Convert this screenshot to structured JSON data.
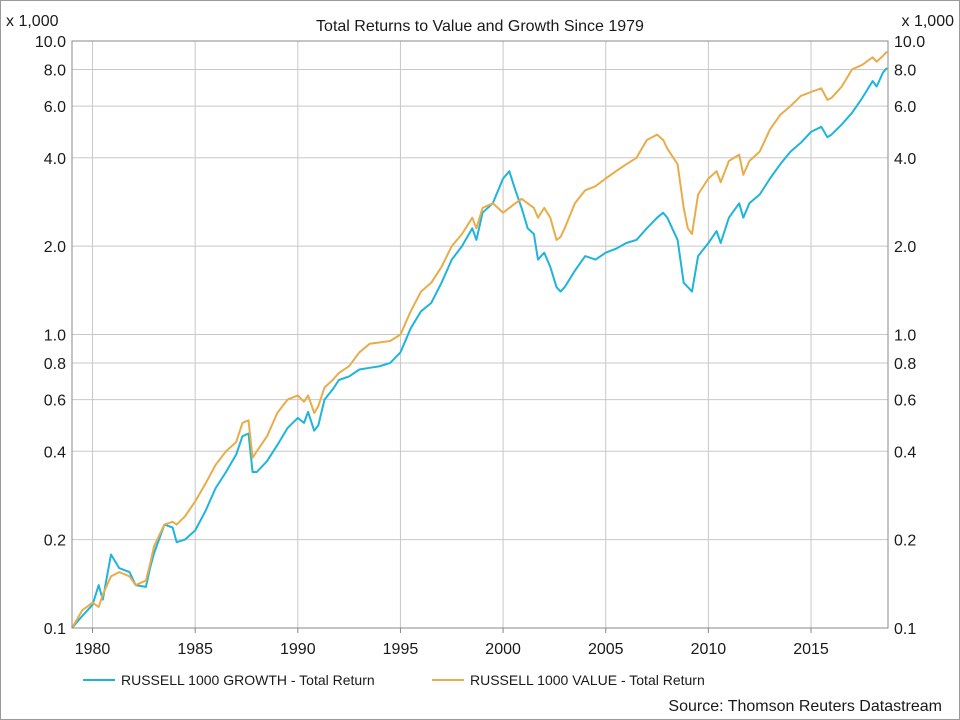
{
  "chart_data": {
    "type": "line",
    "title": "Total Returns to Value and Growth Since 1979",
    "y_unit_left": "x 1,000",
    "y_unit_right": "x 1,000",
    "y_scale": "log",
    "ylim": [
      0.1,
      10.0
    ],
    "xlim": [
      1979.0,
      2018.75
    ],
    "y_ticks": [
      {
        "value": 10.0,
        "label": "10.0"
      },
      {
        "value": 8.0,
        "label": "8.0"
      },
      {
        "value": 6.0,
        "label": "6.0"
      },
      {
        "value": 4.0,
        "label": "4.0"
      },
      {
        "value": 2.0,
        "label": "2.0"
      },
      {
        "value": 1.0,
        "label": "1.0"
      },
      {
        "value": 0.8,
        "label": "0.8"
      },
      {
        "value": 0.6,
        "label": "0.6"
      },
      {
        "value": 0.4,
        "label": "0.4"
      },
      {
        "value": 0.2,
        "label": "0.2"
      },
      {
        "value": 0.1,
        "label": "0.1"
      }
    ],
    "x_ticks": [
      {
        "value": 1980,
        "label": "1980"
      },
      {
        "value": 1985,
        "label": "1985"
      },
      {
        "value": 1990,
        "label": "1990"
      },
      {
        "value": 1995,
        "label": "1995"
      },
      {
        "value": 2000,
        "label": "2000"
      },
      {
        "value": 2005,
        "label": "2005"
      },
      {
        "value": 2010,
        "label": "2010"
      },
      {
        "value": 2015,
        "label": "2015"
      }
    ],
    "grid": true,
    "legend_position": "bottom",
    "source": "Source: Thomson Reuters Datastream",
    "series": [
      {
        "name": "RUSSELL 1000 GROWTH - Total Return",
        "color": "#1fb4dc",
        "points": [
          [
            1979.0,
            0.1
          ],
          [
            1979.5,
            0.11
          ],
          [
            1980.0,
            0.12
          ],
          [
            1980.3,
            0.14
          ],
          [
            1980.5,
            0.125
          ],
          [
            1980.9,
            0.178
          ],
          [
            1981.3,
            0.16
          ],
          [
            1981.8,
            0.155
          ],
          [
            1982.1,
            0.14
          ],
          [
            1982.6,
            0.138
          ],
          [
            1982.8,
            0.16
          ],
          [
            1983.0,
            0.18
          ],
          [
            1983.5,
            0.225
          ],
          [
            1983.9,
            0.22
          ],
          [
            1984.1,
            0.196
          ],
          [
            1984.5,
            0.2
          ],
          [
            1985.0,
            0.215
          ],
          [
            1985.5,
            0.25
          ],
          [
            1986.0,
            0.3
          ],
          [
            1986.5,
            0.34
          ],
          [
            1987.0,
            0.39
          ],
          [
            1987.3,
            0.45
          ],
          [
            1987.6,
            0.46
          ],
          [
            1987.8,
            0.34
          ],
          [
            1988.0,
            0.34
          ],
          [
            1988.5,
            0.37
          ],
          [
            1989.0,
            0.42
          ],
          [
            1989.5,
            0.48
          ],
          [
            1990.0,
            0.52
          ],
          [
            1990.3,
            0.5
          ],
          [
            1990.5,
            0.545
          ],
          [
            1990.8,
            0.47
          ],
          [
            1991.0,
            0.49
          ],
          [
            1991.3,
            0.6
          ],
          [
            1991.7,
            0.65
          ],
          [
            1992.0,
            0.7
          ],
          [
            1992.5,
            0.72
          ],
          [
            1993.0,
            0.76
          ],
          [
            1993.5,
            0.77
          ],
          [
            1994.0,
            0.78
          ],
          [
            1994.5,
            0.8
          ],
          [
            1995.0,
            0.87
          ],
          [
            1995.5,
            1.05
          ],
          [
            1996.0,
            1.2
          ],
          [
            1996.5,
            1.28
          ],
          [
            1997.0,
            1.5
          ],
          [
            1997.5,
            1.8
          ],
          [
            1998.0,
            2.0
          ],
          [
            1998.5,
            2.3
          ],
          [
            1998.7,
            2.1
          ],
          [
            1999.0,
            2.6
          ],
          [
            1999.5,
            2.8
          ],
          [
            2000.0,
            3.4
          ],
          [
            2000.3,
            3.6
          ],
          [
            2000.6,
            3.1
          ],
          [
            2000.9,
            2.7
          ],
          [
            2001.2,
            2.3
          ],
          [
            2001.5,
            2.2
          ],
          [
            2001.7,
            1.8
          ],
          [
            2002.0,
            1.9
          ],
          [
            2002.3,
            1.7
          ],
          [
            2002.6,
            1.45
          ],
          [
            2002.8,
            1.4
          ],
          [
            2003.0,
            1.45
          ],
          [
            2003.5,
            1.65
          ],
          [
            2004.0,
            1.85
          ],
          [
            2004.5,
            1.8
          ],
          [
            2005.0,
            1.9
          ],
          [
            2005.5,
            1.96
          ],
          [
            2006.0,
            2.05
          ],
          [
            2006.5,
            2.1
          ],
          [
            2007.0,
            2.3
          ],
          [
            2007.5,
            2.5
          ],
          [
            2007.8,
            2.6
          ],
          [
            2008.0,
            2.5
          ],
          [
            2008.5,
            2.1
          ],
          [
            2008.8,
            1.5
          ],
          [
            2009.0,
            1.45
          ],
          [
            2009.2,
            1.4
          ],
          [
            2009.5,
            1.85
          ],
          [
            2010.0,
            2.05
          ],
          [
            2010.4,
            2.25
          ],
          [
            2010.6,
            2.05
          ],
          [
            2011.0,
            2.5
          ],
          [
            2011.5,
            2.8
          ],
          [
            2011.7,
            2.5
          ],
          [
            2012.0,
            2.8
          ],
          [
            2012.5,
            3.0
          ],
          [
            2013.0,
            3.4
          ],
          [
            2013.5,
            3.8
          ],
          [
            2014.0,
            4.2
          ],
          [
            2014.5,
            4.5
          ],
          [
            2015.0,
            4.9
          ],
          [
            2015.5,
            5.1
          ],
          [
            2015.8,
            4.7
          ],
          [
            2016.0,
            4.8
          ],
          [
            2016.5,
            5.2
          ],
          [
            2017.0,
            5.7
          ],
          [
            2017.5,
            6.4
          ],
          [
            2018.0,
            7.3
          ],
          [
            2018.2,
            7.0
          ],
          [
            2018.5,
            7.8
          ],
          [
            2018.7,
            8.1
          ]
        ]
      },
      {
        "name": "RUSSELL 1000 VALUE - Total Return",
        "color": "#e8ad4a",
        "points": [
          [
            1979.0,
            0.1
          ],
          [
            1979.5,
            0.115
          ],
          [
            1980.0,
            0.122
          ],
          [
            1980.3,
            0.118
          ],
          [
            1980.5,
            0.13
          ],
          [
            1980.9,
            0.15
          ],
          [
            1981.3,
            0.155
          ],
          [
            1981.8,
            0.15
          ],
          [
            1982.1,
            0.14
          ],
          [
            1982.6,
            0.145
          ],
          [
            1982.8,
            0.165
          ],
          [
            1983.0,
            0.19
          ],
          [
            1983.5,
            0.225
          ],
          [
            1983.9,
            0.23
          ],
          [
            1984.1,
            0.225
          ],
          [
            1984.5,
            0.24
          ],
          [
            1985.0,
            0.27
          ],
          [
            1985.5,
            0.31
          ],
          [
            1986.0,
            0.36
          ],
          [
            1986.5,
            0.4
          ],
          [
            1987.0,
            0.43
          ],
          [
            1987.3,
            0.5
          ],
          [
            1987.6,
            0.51
          ],
          [
            1987.8,
            0.38
          ],
          [
            1988.0,
            0.4
          ],
          [
            1988.5,
            0.45
          ],
          [
            1989.0,
            0.54
          ],
          [
            1989.5,
            0.6
          ],
          [
            1990.0,
            0.62
          ],
          [
            1990.3,
            0.59
          ],
          [
            1990.5,
            0.62
          ],
          [
            1990.8,
            0.54
          ],
          [
            1991.0,
            0.57
          ],
          [
            1991.3,
            0.66
          ],
          [
            1991.7,
            0.7
          ],
          [
            1992.0,
            0.74
          ],
          [
            1992.5,
            0.78
          ],
          [
            1993.0,
            0.87
          ],
          [
            1993.5,
            0.93
          ],
          [
            1994.0,
            0.94
          ],
          [
            1994.5,
            0.95
          ],
          [
            1995.0,
            1.0
          ],
          [
            1995.5,
            1.2
          ],
          [
            1996.0,
            1.4
          ],
          [
            1996.5,
            1.5
          ],
          [
            1997.0,
            1.7
          ],
          [
            1997.5,
            2.0
          ],
          [
            1998.0,
            2.2
          ],
          [
            1998.5,
            2.5
          ],
          [
            1998.7,
            2.3
          ],
          [
            1999.0,
            2.7
          ],
          [
            1999.5,
            2.8
          ],
          [
            2000.0,
            2.6
          ],
          [
            2000.3,
            2.7
          ],
          [
            2000.6,
            2.8
          ],
          [
            2000.9,
            2.9
          ],
          [
            2001.2,
            2.8
          ],
          [
            2001.5,
            2.7
          ],
          [
            2001.7,
            2.5
          ],
          [
            2002.0,
            2.7
          ],
          [
            2002.3,
            2.5
          ],
          [
            2002.6,
            2.1
          ],
          [
            2002.8,
            2.15
          ],
          [
            2003.0,
            2.3
          ],
          [
            2003.5,
            2.8
          ],
          [
            2004.0,
            3.1
          ],
          [
            2004.5,
            3.2
          ],
          [
            2005.0,
            3.4
          ],
          [
            2005.5,
            3.6
          ],
          [
            2006.0,
            3.8
          ],
          [
            2006.5,
            4.0
          ],
          [
            2007.0,
            4.6
          ],
          [
            2007.5,
            4.8
          ],
          [
            2007.8,
            4.6
          ],
          [
            2008.0,
            4.3
          ],
          [
            2008.5,
            3.8
          ],
          [
            2008.8,
            2.7
          ],
          [
            2009.0,
            2.3
          ],
          [
            2009.2,
            2.2
          ],
          [
            2009.5,
            3.0
          ],
          [
            2010.0,
            3.4
          ],
          [
            2010.4,
            3.6
          ],
          [
            2010.6,
            3.3
          ],
          [
            2011.0,
            3.9
          ],
          [
            2011.5,
            4.1
          ],
          [
            2011.7,
            3.5
          ],
          [
            2012.0,
            3.9
          ],
          [
            2012.5,
            4.2
          ],
          [
            2013.0,
            5.0
          ],
          [
            2013.5,
            5.6
          ],
          [
            2014.0,
            6.0
          ],
          [
            2014.5,
            6.5
          ],
          [
            2015.0,
            6.7
          ],
          [
            2015.5,
            6.9
          ],
          [
            2015.8,
            6.3
          ],
          [
            2016.0,
            6.4
          ],
          [
            2016.5,
            7.0
          ],
          [
            2017.0,
            8.0
          ],
          [
            2017.5,
            8.3
          ],
          [
            2018.0,
            8.8
          ],
          [
            2018.2,
            8.5
          ],
          [
            2018.5,
            8.9
          ],
          [
            2018.7,
            9.2
          ]
        ]
      }
    ]
  }
}
